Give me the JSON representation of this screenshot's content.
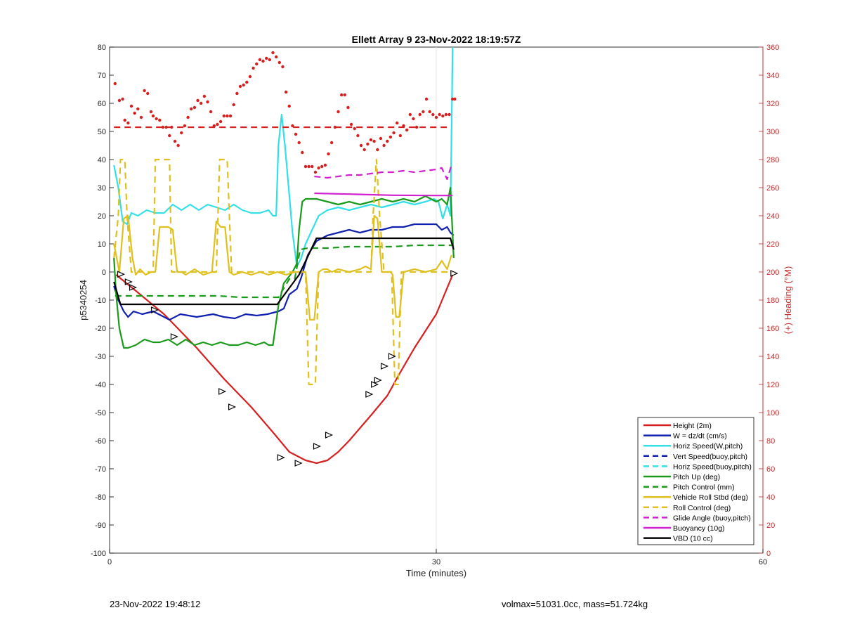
{
  "chart_data": {
    "type": "line",
    "title": "Ellett Array 9 23-Nov-2022 18:19:57Z",
    "xlabel": "Time (minutes)",
    "ylabel_left": "p5340254",
    "ylabel_right": "(+) Heading (°M)",
    "xlim": [
      0,
      60
    ],
    "ylim_left": [
      -100,
      80
    ],
    "ylim_right": [
      0,
      360
    ],
    "x_ticks": [
      "0",
      "30",
      "60"
    ],
    "y_ticks_left": [
      "80",
      "70",
      "60",
      "50",
      "40",
      "30",
      "20",
      "10",
      "0",
      "-10",
      "-20",
      "-30",
      "-40",
      "-50",
      "-60",
      "-70",
      "-80",
      "-90",
      "-100"
    ],
    "y_ticks_right": [
      "360",
      "340",
      "320",
      "300",
      "280",
      "260",
      "240",
      "220",
      "200",
      "180",
      "160",
      "140",
      "120",
      "100",
      "80",
      "60",
      "40",
      "20",
      "0"
    ],
    "grid": "x only",
    "legend_position": "bottom-right",
    "colors": {
      "red": "#d62020",
      "blue": "#1020b0",
      "cyan": "#33e0e8",
      "green": "#1a9a1a",
      "yellow": "#e0c020",
      "magenta": "#d020d0",
      "black": "#000000",
      "axis_right": "#c83030"
    },
    "series": [
      {
        "name": "Height (2m)",
        "color": "red",
        "dash": false,
        "x": [
          0.6,
          2.5,
          5,
          8,
          10.5,
          13,
          15,
          16.5,
          18,
          19,
          20,
          21,
          22,
          24,
          25.5,
          26.5,
          28,
          30,
          31.5
        ],
        "y": [
          -1,
          -7,
          -15,
          -27,
          -38,
          -48,
          -57,
          -64,
          -67,
          -68,
          -67,
          -64,
          -60,
          -51,
          -44,
          -37,
          -27,
          -15,
          -1
        ]
      },
      {
        "name": "Height markers",
        "color": "black",
        "dash": false,
        "markers_only": true,
        "x": [
          1,
          1.7,
          2.1,
          4.1,
          5.9,
          10.3,
          11.2,
          15.7,
          17.3,
          19.0,
          20.1,
          23.8,
          24.3,
          24.6,
          25.2,
          25.9,
          31.6
        ],
        "y": [
          -0.8,
          -3.5,
          -5.5,
          -13.5,
          -23,
          -42.5,
          -48,
          -66,
          -68,
          -62,
          -58,
          -43.5,
          -40,
          -38.5,
          -33.5,
          -30,
          -0.5
        ]
      },
      {
        "name": "W = dz/dt (cm/s)",
        "color": "blue",
        "dash": false,
        "x": [
          0.4,
          0.8,
          1.3,
          1.7,
          2.2,
          3.0,
          4.0,
          5.0,
          5.5,
          6.5,
          8,
          9.5,
          10.5,
          11.5,
          12.5,
          13.5,
          14.5,
          15.5,
          16.0,
          16.5,
          17.2,
          17.6,
          18.2,
          19,
          20,
          21,
          22,
          23,
          24,
          25,
          26,
          27,
          28,
          29,
          30,
          30.5,
          31,
          31.3,
          31.6
        ],
        "y": [
          -5,
          -10,
          -14,
          -16,
          -14,
          -15,
          -14,
          -16,
          -17,
          -15,
          -16,
          -15,
          -16,
          -16.5,
          -15,
          -15.5,
          -15,
          -14,
          -13,
          -8,
          -6,
          -2,
          6,
          11,
          13,
          14,
          15,
          14,
          15,
          15,
          16,
          16,
          17,
          17,
          17,
          15,
          16,
          14,
          13
        ]
      },
      {
        "name": "Horiz Speed(W,pitch)",
        "color": "cyan",
        "dash": false,
        "x": [
          0.4,
          0.8,
          1.2,
          1.6,
          2.0,
          2.6,
          3.4,
          4.2,
          5.0,
          5.8,
          6.6,
          7.4,
          8.2,
          9.0,
          9.8,
          10.6,
          11.4,
          12.2,
          13.0,
          13.8,
          14.6,
          15.0,
          15.3,
          15.5,
          15.8,
          16.1,
          16.4,
          16.8,
          17.2,
          17.6,
          18.0,
          18.6,
          19.2,
          20,
          21,
          22,
          23,
          24,
          25,
          26,
          27,
          28,
          29,
          29.8,
          30.2,
          30.6,
          31.0,
          31.3,
          31.5
        ],
        "y": [
          38,
          30,
          18,
          17,
          21,
          20,
          22,
          21,
          21,
          24,
          22,
          24,
          22,
          24,
          23,
          22,
          24,
          22,
          21,
          21,
          22,
          20,
          20,
          45,
          56,
          45,
          32,
          14,
          2,
          5,
          10,
          15,
          20,
          22,
          23,
          22,
          23,
          24,
          23,
          24,
          25,
          24,
          25,
          26,
          25,
          19,
          24,
          20,
          80
        ]
      },
      {
        "name": "Vert Speed(buoy,pitch)",
        "color": "blue",
        "dash": true,
        "x": [],
        "y": []
      },
      {
        "name": "Horiz Speed(buoy,pitch)",
        "color": "cyan",
        "dash": true,
        "x": [],
        "y": []
      },
      {
        "name": "Pitch Up (deg)",
        "color": "green",
        "dash": false,
        "x": [
          0.4,
          0.6,
          0.9,
          1.3,
          1.7,
          2.4,
          3.2,
          4.0,
          4.6,
          5.4,
          6.2,
          7.0,
          7.8,
          8.6,
          9.4,
          10.2,
          11.0,
          11.8,
          12.6,
          13.4,
          14.2,
          14.6,
          15.0,
          15.5,
          16.0,
          16.4,
          16.8,
          17.2,
          17.4,
          17.7,
          18.0,
          19,
          20,
          21,
          22,
          23,
          24,
          25,
          26,
          27,
          28,
          29,
          30,
          30.5,
          31.0,
          31.3,
          31.6
        ],
        "y": [
          5,
          -8,
          -20,
          -27,
          -27,
          -26,
          -24,
          -25,
          -25,
          -24,
          -26,
          -24,
          -26,
          -25,
          -26,
          -25,
          -26,
          -26,
          -25,
          -26,
          -25,
          -26,
          -26,
          -12,
          -4,
          -2,
          0,
          3,
          15,
          25,
          26,
          26,
          25,
          24,
          25,
          24,
          25,
          26,
          25,
          26,
          25,
          27,
          25,
          26,
          24,
          30,
          5
        ]
      },
      {
        "name": "Pitch Control (mm)",
        "color": "green",
        "dash": true,
        "x": [
          0.5,
          2,
          4,
          6,
          8,
          10,
          12,
          14,
          15.5,
          16.5,
          17,
          17.5,
          18.2,
          20,
          22,
          24,
          26,
          28,
          30,
          31.5
        ],
        "y": [
          -8.5,
          -8.5,
          -8.5,
          -8.5,
          -8.5,
          -8.5,
          -9,
          -9,
          -9,
          -2.5,
          -2.5,
          8,
          8.5,
          8.5,
          9,
          9,
          9,
          9.5,
          9.5,
          9.5
        ]
      },
      {
        "name": "Vehicle Roll Stbd (deg)",
        "color": "yellow",
        "dash": false,
        "x": [
          0.4,
          0.9,
          1.3,
          1.7,
          2.1,
          2.4,
          2.8,
          3.3,
          3.8,
          4.2,
          4.6,
          5.0,
          5.4,
          5.8,
          6.2,
          6.6,
          7.0,
          7.8,
          8.6,
          9.4,
          9.8,
          10.2,
          10.6,
          11.0,
          11.4,
          12.2,
          13.0,
          13.8,
          14.6,
          15.4,
          16.2,
          17.0,
          17.6,
          18.0,
          18.4,
          18.8,
          19.2,
          19.6,
          20.0,
          20.4,
          21.0,
          22.0,
          23.0,
          23.5,
          24.0,
          24.3,
          24.6,
          25.0,
          25.4,
          25.8,
          26.0,
          26.3,
          26.6,
          27.0,
          28.0,
          29.0,
          30.0,
          30.5,
          31.0,
          31.4
        ],
        "y": [
          10,
          0,
          19,
          20,
          5,
          -1,
          1,
          -1,
          0,
          0,
          16,
          16,
          16,
          15,
          0,
          0,
          -1,
          1,
          -1,
          0,
          18,
          16,
          16,
          0,
          -1,
          0,
          -1,
          0,
          -1,
          0,
          -1,
          0,
          0,
          0,
          -17,
          -17,
          0,
          1,
          1,
          0,
          1,
          0,
          1,
          2,
          1,
          20,
          19,
          0,
          0,
          0,
          -1,
          -16,
          -16,
          0,
          1,
          0,
          1,
          4,
          1,
          6
        ]
      },
      {
        "name": "Roll Control (deg)",
        "color": "yellow",
        "dash": true,
        "x": [
          0.4,
          0.8,
          1.0,
          1.4,
          1.6,
          2.0,
          2.5,
          3.0,
          3.5,
          4.0,
          4.2,
          4.6,
          5.0,
          5.5,
          5.7,
          6.2,
          7,
          8,
          9,
          9.8,
          10.1,
          10.5,
          10.8,
          11.2,
          12,
          13,
          14,
          15,
          16,
          17,
          17.4,
          18,
          18.3,
          18.6,
          18.9,
          19.2,
          19.5,
          19.8,
          20.2,
          21,
          22,
          23,
          24,
          24.2,
          24.5,
          24.8,
          25.2,
          25.6,
          25.9,
          26.2,
          26.5,
          26.8,
          27.1,
          27.5,
          28,
          29,
          30,
          31,
          31.5
        ],
        "y": [
          5,
          20,
          40,
          40,
          20,
          0,
          0,
          0,
          0,
          0,
          40,
          40,
          40,
          40,
          0,
          0,
          0,
          0,
          0,
          0,
          40,
          40,
          40,
          0,
          0,
          0,
          0,
          0,
          0,
          0,
          0,
          0,
          -40,
          -40,
          -40,
          0,
          0,
          0,
          0,
          0,
          0,
          0,
          0,
          20,
          40,
          20,
          0,
          0,
          0,
          -40,
          -40,
          0,
          0,
          0,
          0,
          0,
          0,
          0,
          0
        ]
      },
      {
        "name": "Glide Angle (buoy,pitch)",
        "color": "magenta",
        "dash": true,
        "x": [
          18.8,
          20,
          21,
          22,
          23,
          24,
          25,
          26,
          27,
          28,
          29,
          30,
          30.5,
          31,
          31.4
        ],
        "y": [
          34,
          33.5,
          34,
          34.5,
          34.5,
          35,
          35.5,
          35.5,
          36,
          35.5,
          36,
          36.5,
          37,
          33,
          38
        ]
      },
      {
        "name": "Buoyancy (10g)",
        "color": "magenta",
        "dash": false,
        "x": [
          18.8,
          22,
          26,
          30,
          31.5
        ],
        "y": [
          28,
          27.7,
          27.3,
          27.2,
          27.2
        ]
      },
      {
        "name": "VBD (10 cc)",
        "color": "black",
        "dash": false,
        "x": [
          0.4,
          1.0,
          14.8,
          15.4,
          17.4,
          19.0,
          24.5,
          31.3,
          31.6
        ],
        "y": [
          -3.5,
          -11.5,
          -11.5,
          -11.5,
          -1,
          12,
          12,
          12,
          8
        ]
      },
      {
        "name": "Heading (mean)",
        "color": "red",
        "dash": true,
        "axis": "right",
        "x": [
          0.4,
          31.3
        ],
        "y": [
          303,
          303
        ]
      },
      {
        "name": "Heading (samples)",
        "color": "red",
        "dash": false,
        "axis": "right",
        "markers_only": true,
        "x": [
          0.5,
          0.9,
          1.2,
          1.4,
          1.7,
          2.0,
          2.3,
          2.6,
          2.9,
          3.2,
          3.5,
          3.8,
          4.0,
          4.3,
          4.6,
          4.9,
          5.2,
          5.5,
          5.7,
          6.0,
          6.3,
          6.6,
          6.9,
          7.2,
          7.5,
          7.8,
          8.1,
          8.4,
          8.7,
          9.0,
          9.3,
          9.6,
          9.9,
          10.2,
          10.5,
          10.8,
          11.1,
          11.4,
          11.7,
          12.0,
          12.3,
          12.6,
          12.9,
          13.2,
          13.5,
          13.8,
          14.1,
          14.4,
          14.7,
          15.0,
          15.3,
          15.6,
          15.9,
          16.2,
          16.5,
          16.8,
          17.1,
          17.4,
          17.7,
          18.0,
          18.3,
          18.6,
          18.9,
          19.2,
          19.5,
          19.8,
          20.1,
          20.4,
          20.7,
          21.0,
          21.3,
          21.6,
          21.9,
          22.2,
          22.5,
          22.8,
          23.1,
          23.4,
          23.7,
          24.0,
          24.3,
          24.6,
          24.9,
          25.2,
          25.5,
          25.8,
          26.1,
          26.4,
          26.7,
          27.0,
          27.3,
          27.6,
          27.9,
          28.2,
          28.5,
          28.8,
          29.1,
          29.4,
          29.7,
          30.0,
          30.3,
          30.6,
          30.9,
          31.2,
          31.5,
          31.7
        ],
        "y": [
          334,
          322,
          323,
          308,
          306,
          318,
          313,
          316,
          310,
          329,
          327,
          314,
          311,
          309,
          308,
          303,
          303,
          297,
          303,
          293,
          290,
          299,
          304,
          310,
          316,
          317,
          322,
          320,
          325,
          321,
          314,
          304,
          305,
          307,
          311,
          311,
          311,
          319,
          327,
          332,
          333,
          335,
          339,
          345,
          348,
          351,
          350,
          352,
          351,
          356,
          353,
          349,
          346,
          328,
          318,
          304,
          298,
          292,
          285,
          275,
          275,
          275,
          271,
          274,
          275,
          276,
          284,
          292,
          303,
          314,
          326,
          326,
          317,
          305,
          302,
          297,
          290,
          287,
          291,
          294,
          293,
          287,
          295,
          290,
          293,
          296,
          299,
          306,
          297,
          304,
          301,
          312,
          309,
          303,
          312,
          314,
          323,
          314,
          312,
          310,
          312,
          311,
          312,
          312,
          323,
          323
        ]
      }
    ],
    "legend": [
      {
        "label": "Height (2m)",
        "color": "red",
        "dash": false
      },
      {
        "label": "W = dz/dt (cm/s)",
        "color": "blue",
        "dash": false
      },
      {
        "label": "Horiz Speed(W,pitch)",
        "color": "cyan",
        "dash": false
      },
      {
        "label": "Vert Speed(buoy,pitch)",
        "color": "blue",
        "dash": true
      },
      {
        "label": "Horiz Speed(buoy,pitch)",
        "color": "cyan",
        "dash": true
      },
      {
        "label": "Pitch Up (deg)",
        "color": "green",
        "dash": false
      },
      {
        "label": "Pitch Control (mm)",
        "color": "green",
        "dash": true
      },
      {
        "label": "Vehicle Roll Stbd (deg)",
        "color": "yellow",
        "dash": false
      },
      {
        "label": "Roll Control (deg)",
        "color": "yellow",
        "dash": true
      },
      {
        "label": "Glide Angle (buoy,pitch)",
        "color": "magenta",
        "dash": true
      },
      {
        "label": "Buoyancy (10g)",
        "color": "magenta",
        "dash": false
      },
      {
        "label": "VBD (10 cc)",
        "color": "black",
        "dash": false
      }
    ]
  },
  "footer": {
    "timestamp": "23-Nov-2022 19:48:12",
    "params": "volmax=51031.0cc, mass=51.724kg"
  }
}
